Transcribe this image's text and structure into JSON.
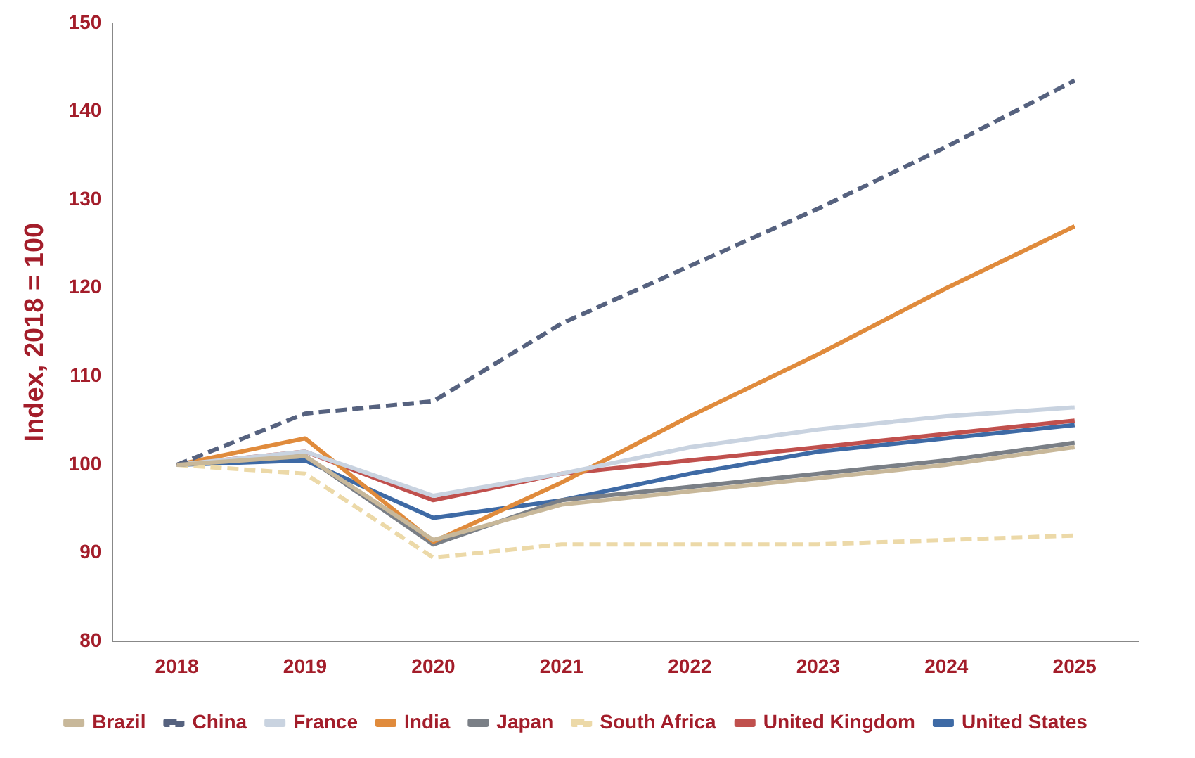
{
  "chart_data": {
    "type": "line",
    "ylabel": "Index, 2018 = 100",
    "categories": [
      "2018",
      "2019",
      "2020",
      "2021",
      "2022",
      "2023",
      "2024",
      "2025"
    ],
    "ylim": [
      80,
      150
    ],
    "yticks": [
      80,
      90,
      100,
      110,
      120,
      130,
      140,
      150
    ],
    "grid": false,
    "legend": "bottom",
    "marker": "none",
    "line_style": "solid",
    "series": [
      {
        "name": "Brazil",
        "color": "#c8b89a",
        "values": [
          100,
          101,
          91.5,
          95.5,
          97,
          98.5,
          100,
          102
        ]
      },
      {
        "name": "China",
        "color": "#56627f",
        "line_style": "dashed",
        "values": [
          100,
          105.8,
          107.2,
          116,
          122.5,
          129,
          136,
          143.5
        ]
      },
      {
        "name": "France",
        "color": "#c9d3e0",
        "values": [
          100,
          101.5,
          96.5,
          99,
          102,
          104,
          105.5,
          106.5
        ]
      },
      {
        "name": "India",
        "color": "#e08b3c",
        "values": [
          100,
          103,
          91.3,
          98,
          105.5,
          112.5,
          120,
          127
        ]
      },
      {
        "name": "Japan",
        "color": "#7a7f86",
        "values": [
          100,
          101,
          91,
          96,
          97.5,
          99,
          100.5,
          102.5
        ]
      },
      {
        "name": "South Africa",
        "color": "#ecd9a8",
        "line_style": "dashed",
        "values": [
          100,
          99,
          89.5,
          91,
          91,
          91,
          91.5,
          92
        ]
      },
      {
        "name": "United Kingdom",
        "color": "#c0504d",
        "values": [
          100,
          101.5,
          96,
          99,
          100.5,
          102,
          103.5,
          105
        ]
      },
      {
        "name": "United States",
        "color": "#3e6aa5",
        "values": [
          100,
          100.5,
          94,
          96,
          99,
          101.5,
          103,
          104.5
        ]
      }
    ]
  }
}
